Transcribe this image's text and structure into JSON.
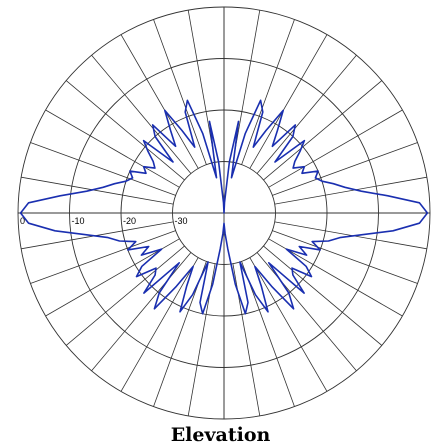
{
  "chart_data": {
    "type": "polar",
    "title": "Elevation",
    "radial_axis": {
      "unit": "dB",
      "min": -40,
      "max": 0,
      "rings": [
        0,
        -10,
        -20,
        -30
      ],
      "tick_labels": [
        "0",
        "-10",
        "-20",
        "-30"
      ]
    },
    "angular_axis": {
      "spoke_step_deg": 10,
      "range_deg": [
        0,
        360
      ],
      "zero_direction": "right",
      "grid": true
    },
    "series": [
      {
        "color": "#1a2fb0",
        "angle_deg": [
          0,
          3,
          6,
          9,
          12,
          15,
          18,
          21,
          24,
          27,
          30,
          33,
          36,
          39,
          42,
          45,
          48,
          51,
          54,
          57,
          60,
          63,
          66,
          69,
          72,
          75,
          78,
          81,
          84,
          87,
          90,
          93,
          96,
          99,
          102,
          105,
          108,
          111,
          114,
          117,
          120,
          123,
          126,
          129,
          132,
          135,
          138,
          141,
          144,
          147,
          150,
          153,
          156,
          159,
          162,
          165,
          168,
          171,
          174,
          177,
          180,
          183,
          186,
          189,
          192,
          195,
          198,
          201,
          204,
          207,
          210,
          213,
          216,
          219,
          222,
          225,
          228,
          231,
          234,
          237,
          240,
          243,
          246,
          249,
          252,
          255,
          258,
          261,
          264,
          267,
          270,
          273,
          276,
          279,
          282,
          285,
          288,
          291,
          294,
          297,
          300,
          303,
          306,
          309,
          312,
          315,
          318,
          321,
          324,
          327,
          330,
          333,
          336,
          339,
          342,
          345,
          348,
          351,
          354,
          357
        ],
        "gain_db": [
          -0.5,
          -2,
          -8,
          -13,
          -16,
          -18,
          -20,
          -21,
          -20,
          -23,
          -22,
          -24,
          -23,
          -21,
          -19,
          -26,
          -20,
          -18,
          -24,
          -21,
          -17,
          -22,
          -26,
          -19,
          -17,
          -24,
          -33,
          -22,
          -30,
          -38,
          -40,
          -38,
          -30,
          -22,
          -33,
          -24,
          -17,
          -19,
          -26,
          -22,
          -17,
          -21,
          -24,
          -18,
          -20,
          -26,
          -19,
          -21,
          -23,
          -24,
          -22,
          -23,
          -20,
          -21,
          -20,
          -18,
          -16,
          -13,
          -8,
          -2,
          -0.5,
          -2,
          -7,
          -13,
          -17,
          -19,
          -22,
          -20,
          -24,
          -22,
          -26,
          -21,
          -19,
          -23,
          -22,
          -18,
          -27,
          -20,
          -17,
          -23,
          -28,
          -24,
          -19,
          -23,
          -30,
          -22,
          -20,
          -26,
          -33,
          -36,
          -38,
          -36,
          -33,
          -26,
          -20,
          -22,
          -30,
          -23,
          -19,
          -24,
          -28,
          -23,
          -17,
          -20,
          -27,
          -18,
          -22,
          -23,
          -19,
          -21,
          -26,
          -22,
          -24,
          -20,
          -22,
          -19,
          -17,
          -13,
          -7,
          -2
        ]
      }
    ]
  }
}
